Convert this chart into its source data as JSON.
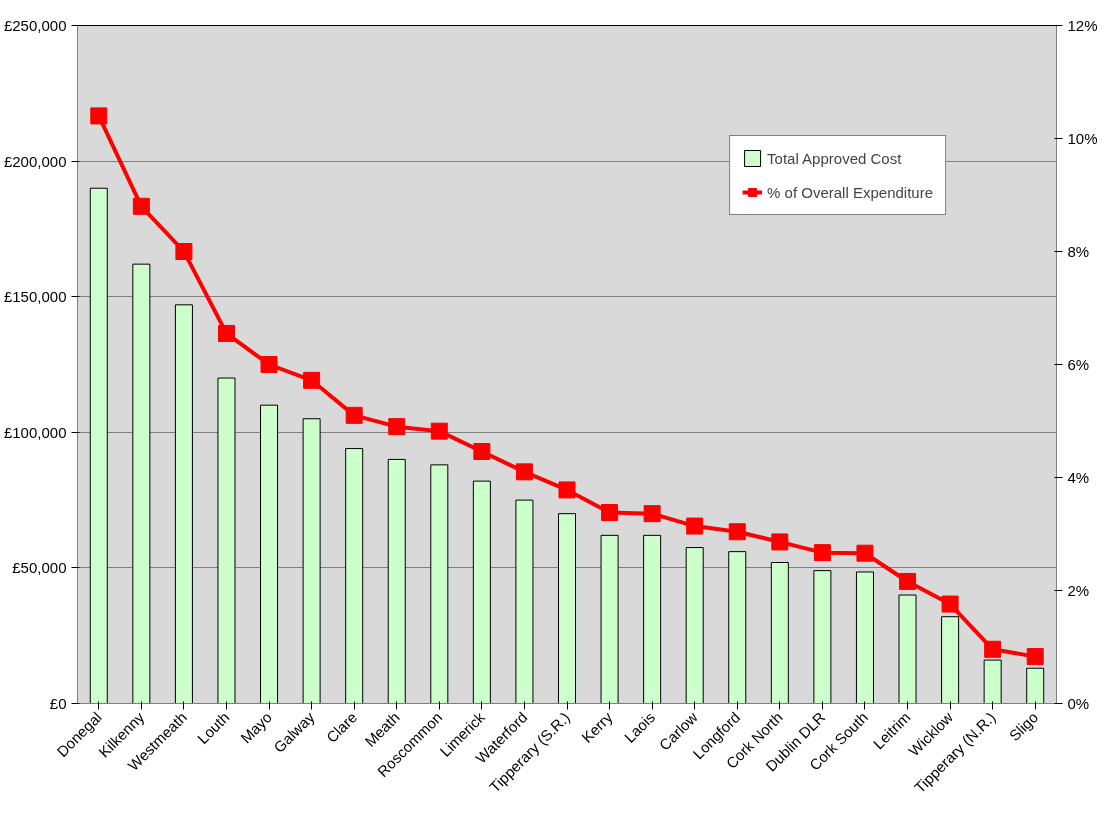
{
  "chart_data": {
    "type": "bar",
    "categories": [
      "Donegal",
      "Kilkenny",
      "Westmeath",
      "Louth",
      "Mayo",
      "Galway",
      "Clare",
      "Meath",
      "Roscommon",
      "Limerick",
      "Waterford",
      "Tipperary (S.R.)",
      "Kerry",
      "Laois",
      "Carlow",
      "Longford",
      "Cork North",
      "Dublin DLR",
      "Cork South",
      "Leitrim",
      "Wicklow",
      "Tipperary (N.R.)",
      "Sligo"
    ],
    "series": [
      {
        "name": "Total Approved Cost",
        "color": "#ccffcc",
        "values": [
          190000,
          162000,
          147000,
          120000,
          110000,
          105000,
          94000,
          90000,
          88000,
          82000,
          75000,
          70000,
          62000,
          62000,
          57500,
          56000,
          52000,
          49000,
          48500,
          40000,
          32000,
          16000,
          13000
        ]
      },
      {
        "name": "% of Overall Expenditure",
        "type": "line",
        "axis": "y2",
        "color": "#ff0000",
        "marker": "square",
        "values": [
          10.4,
          8.8,
          8.0,
          6.55,
          6.0,
          5.72,
          5.1,
          4.9,
          4.82,
          4.46,
          4.1,
          3.78,
          3.38,
          3.36,
          3.14,
          3.04,
          2.86,
          2.67,
          2.66,
          2.16,
          1.76,
          0.96,
          0.83
        ]
      }
    ],
    "ylim": [
      0,
      250000
    ],
    "yticks": [
      {
        "value": 0,
        "label": "£0"
      },
      {
        "value": 50000,
        "label": "£50,000"
      },
      {
        "value": 100000,
        "label": "£100,000"
      },
      {
        "value": 150000,
        "label": "£150,000"
      },
      {
        "value": 200000,
        "label": "£200,000"
      },
      {
        "value": 250000,
        "label": "£250,000"
      }
    ],
    "y2lim": [
      0,
      12
    ],
    "y2ticks": [
      {
        "value": 0,
        "label": "0%"
      },
      {
        "value": 2,
        "label": "2%"
      },
      {
        "value": 4,
        "label": "4%"
      },
      {
        "value": 6,
        "label": "6%"
      },
      {
        "value": 8,
        "label": "8%"
      },
      {
        "value": 10,
        "label": "10%"
      },
      {
        "value": 12,
        "label": "12%"
      }
    ],
    "grid": "y",
    "legend": "top right"
  }
}
